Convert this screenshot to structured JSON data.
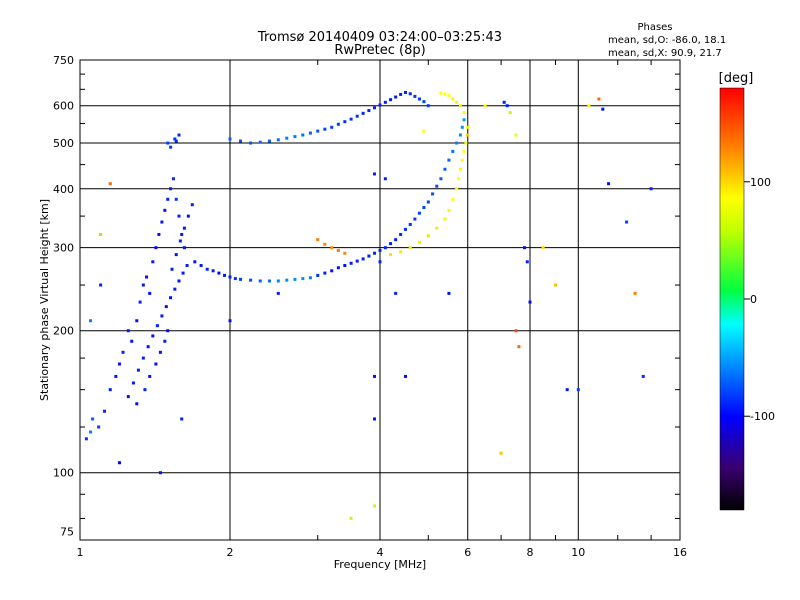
{
  "chart_data": {
    "type": "scatter",
    "title": "Tromsø 20140409 03:24:00–03:25:43",
    "subtitle": "RwPretec (8p)",
    "stats": {
      "heading": "Phases",
      "line1": "mean, sd,O: -86.0, 18.1",
      "line2": "mean, sd,X:  90.9, 21.7"
    },
    "xlabel": "Frequency [MHz]",
    "ylabel": "Stationary phase Virtual Height [km]",
    "x_scale": "log",
    "y_scale": "log",
    "xlim": [
      1,
      16
    ],
    "ylim": [
      72,
      750
    ],
    "x_ticks": [
      1,
      2,
      4,
      6,
      8,
      10,
      16
    ],
    "y_ticks": [
      75,
      100,
      200,
      300,
      400,
      500,
      600,
      750
    ],
    "grid": true,
    "colorbar": {
      "label": "[deg]",
      "range": [
        -180,
        180
      ],
      "ticks": [
        100,
        0,
        -100
      ]
    },
    "series": [
      {
        "points": [
          [
            1.03,
            118,
            -85
          ],
          [
            1.05,
            122,
            -60
          ],
          [
            1.06,
            130,
            -70
          ],
          [
            1.09,
            125,
            -80
          ],
          [
            1.12,
            135,
            -88
          ],
          [
            1.15,
            150,
            -90
          ],
          [
            1.18,
            160,
            -92
          ],
          [
            1.2,
            170,
            -95
          ],
          [
            1.22,
            180,
            -90
          ],
          [
            1.25,
            200,
            -92
          ],
          [
            1.27,
            190,
            -95
          ],
          [
            1.3,
            210,
            -95
          ],
          [
            1.32,
            230,
            -90
          ],
          [
            1.34,
            250,
            -92
          ],
          [
            1.36,
            260,
            -95
          ],
          [
            1.38,
            240,
            -95
          ],
          [
            1.4,
            280,
            -92
          ],
          [
            1.42,
            300,
            -95
          ],
          [
            1.44,
            320,
            -94
          ],
          [
            1.46,
            340,
            -92
          ],
          [
            1.48,
            360,
            -95
          ],
          [
            1.5,
            380,
            -90
          ],
          [
            1.52,
            400,
            -90
          ],
          [
            1.54,
            420,
            -88
          ],
          [
            1.56,
            380,
            -85
          ],
          [
            1.58,
            350,
            -90
          ],
          [
            1.6,
            320,
            -92
          ],
          [
            1.62,
            300,
            -95
          ],
          [
            1.25,
            145,
            -95
          ],
          [
            1.28,
            155,
            -92
          ],
          [
            1.31,
            165,
            -90
          ],
          [
            1.34,
            175,
            -92
          ],
          [
            1.37,
            185,
            -95
          ],
          [
            1.4,
            195,
            -95
          ],
          [
            1.43,
            205,
            -90
          ],
          [
            1.46,
            215,
            -92
          ],
          [
            1.49,
            225,
            -95
          ],
          [
            1.52,
            235,
            -95
          ],
          [
            1.55,
            245,
            -92
          ],
          [
            1.58,
            255,
            -95
          ],
          [
            1.61,
            265,
            -92
          ],
          [
            1.64,
            275,
            -90
          ],
          [
            1.3,
            140,
            -95
          ],
          [
            1.35,
            150,
            -90
          ],
          [
            1.38,
            160,
            -92
          ],
          [
            1.42,
            170,
            -95
          ],
          [
            1.45,
            180,
            -95
          ],
          [
            1.48,
            190,
            -92
          ],
          [
            1.5,
            200,
            -95
          ],
          [
            1.53,
            270,
            -92
          ],
          [
            1.56,
            290,
            -95
          ],
          [
            1.59,
            310,
            -90
          ],
          [
            1.62,
            330,
            -92
          ],
          [
            1.65,
            350,
            -95
          ],
          [
            1.68,
            370,
            -90
          ],
          [
            1.5,
            500,
            -80
          ],
          [
            1.55,
            510,
            -85
          ],
          [
            1.58,
            520,
            -88
          ],
          [
            1.52,
            490,
            -82
          ],
          [
            1.56,
            505,
            -85
          ],
          [
            1.7,
            280,
            -95
          ],
          [
            1.75,
            275,
            -92
          ],
          [
            1.8,
            270,
            -90
          ],
          [
            1.85,
            268,
            -92
          ],
          [
            1.9,
            265,
            -95
          ],
          [
            1.95,
            262,
            -92
          ],
          [
            2.0,
            260,
            -90
          ],
          [
            2.05,
            258,
            -85
          ],
          [
            2.1,
            257,
            -80
          ],
          [
            2.2,
            256,
            -75
          ],
          [
            2.3,
            255,
            -70
          ],
          [
            2.4,
            255,
            -65
          ],
          [
            2.5,
            255,
            -60
          ],
          [
            2.6,
            256,
            -55
          ],
          [
            2.7,
            257,
            -55
          ],
          [
            2.8,
            258,
            -55
          ],
          [
            2.9,
            259,
            -60
          ],
          [
            3.0,
            262,
            -85
          ],
          [
            3.1,
            265,
            -90
          ],
          [
            3.2,
            268,
            -95
          ],
          [
            3.3,
            272,
            -95
          ],
          [
            3.4,
            275,
            -95
          ],
          [
            3.5,
            278,
            -92
          ],
          [
            3.6,
            281,
            -92
          ],
          [
            3.7,
            284,
            -90
          ],
          [
            3.8,
            288,
            -92
          ],
          [
            3.9,
            292,
            -90
          ],
          [
            4.0,
            296,
            -88
          ],
          [
            4.1,
            300,
            -90
          ],
          [
            4.2,
            306,
            -92
          ],
          [
            4.3,
            312,
            -90
          ],
          [
            4.4,
            320,
            -88
          ],
          [
            4.5,
            328,
            -85
          ],
          [
            4.6,
            336,
            -85
          ],
          [
            4.7,
            345,
            -82
          ],
          [
            4.8,
            355,
            -80
          ],
          [
            4.9,
            365,
            -80
          ],
          [
            5.0,
            375,
            -78
          ],
          [
            5.1,
            390,
            -75
          ],
          [
            5.2,
            405,
            -75
          ],
          [
            5.3,
            420,
            -72
          ],
          [
            5.4,
            440,
            -70
          ],
          [
            5.5,
            460,
            -68
          ],
          [
            5.6,
            480,
            -65
          ],
          [
            5.7,
            500,
            -60
          ],
          [
            5.8,
            520,
            -55
          ],
          [
            5.85,
            540,
            -55
          ],
          [
            5.9,
            560,
            -50
          ],
          [
            2.0,
            510,
            -70
          ],
          [
            2.1,
            505,
            -72
          ],
          [
            2.2,
            500,
            -75
          ],
          [
            2.3,
            502,
            -70
          ],
          [
            2.4,
            505,
            -68
          ],
          [
            2.5,
            508,
            -65
          ],
          [
            2.6,
            512,
            -60
          ],
          [
            2.7,
            516,
            -62
          ],
          [
            2.8,
            520,
            -65
          ],
          [
            2.9,
            525,
            -70
          ],
          [
            3.0,
            530,
            -75
          ],
          [
            3.1,
            535,
            -78
          ],
          [
            3.2,
            540,
            -80
          ],
          [
            3.3,
            548,
            -82
          ],
          [
            3.4,
            555,
            -85
          ],
          [
            3.5,
            562,
            -85
          ],
          [
            3.6,
            570,
            -85
          ],
          [
            3.7,
            578,
            -88
          ],
          [
            3.8,
            586,
            -88
          ],
          [
            3.9,
            594,
            -90
          ],
          [
            4.0,
            602,
            -90
          ],
          [
            4.1,
            610,
            -92
          ],
          [
            4.2,
            618,
            -92
          ],
          [
            4.3,
            626,
            -92
          ],
          [
            4.4,
            634,
            -90
          ],
          [
            4.5,
            640,
            -88
          ],
          [
            4.6,
            636,
            -85
          ],
          [
            4.7,
            628,
            -85
          ],
          [
            4.8,
            620,
            -82
          ],
          [
            4.9,
            612,
            -80
          ],
          [
            5.0,
            600,
            -80
          ],
          [
            3.0,
            312,
            130
          ],
          [
            3.1,
            305,
            128
          ],
          [
            3.2,
            300,
            125
          ],
          [
            3.3,
            296,
            130
          ],
          [
            3.4,
            292,
            128
          ],
          [
            4.2,
            290,
            100
          ],
          [
            4.4,
            294,
            98
          ],
          [
            4.6,
            300,
            95
          ],
          [
            4.8,
            308,
            98
          ],
          [
            5.0,
            318,
            100
          ],
          [
            5.2,
            330,
            98
          ],
          [
            5.4,
            345,
            95
          ],
          [
            5.5,
            360,
            92
          ],
          [
            5.6,
            380,
            90
          ],
          [
            5.7,
            400,
            88
          ],
          [
            5.75,
            420,
            90
          ],
          [
            5.8,
            440,
            92
          ],
          [
            5.85,
            460,
            90
          ],
          [
            5.9,
            480,
            88
          ],
          [
            5.95,
            500,
            85
          ],
          [
            6.0,
            520,
            80
          ],
          [
            6.0,
            540,
            75
          ],
          [
            5.9,
            580,
            90
          ],
          [
            5.8,
            600,
            95
          ],
          [
            5.7,
            610,
            95
          ],
          [
            5.6,
            620,
            92
          ],
          [
            5.5,
            630,
            90
          ],
          [
            5.4,
            635,
            88
          ],
          [
            5.3,
            638,
            90
          ],
          [
            7.2,
            600,
            -90
          ],
          [
            7.3,
            580,
            60
          ],
          [
            7.5,
            520,
            80
          ],
          [
            7.8,
            300,
            -95
          ],
          [
            7.9,
            280,
            -90
          ],
          [
            7.5,
            200,
            150
          ],
          [
            7.6,
            185,
            140
          ],
          [
            8.0,
            230,
            -95
          ],
          [
            9.5,
            150,
            -92
          ],
          [
            10.5,
            600,
            90
          ],
          [
            11.0,
            620,
            140
          ],
          [
            11.2,
            590,
            -95
          ],
          [
            11.5,
            410,
            -95
          ],
          [
            12.5,
            340,
            -80
          ],
          [
            13.0,
            240,
            130
          ],
          [
            13.5,
            160,
            -85
          ],
          [
            14.0,
            400,
            -90
          ],
          [
            8.5,
            300,
            100
          ],
          [
            9.0,
            250,
            110
          ],
          [
            10.0,
            150,
            -80
          ],
          [
            1.15,
            410,
            140
          ],
          [
            1.1,
            320,
            110
          ],
          [
            1.05,
            210,
            -60
          ],
          [
            1.1,
            250,
            -90
          ],
          [
            1.2,
            105,
            -100
          ],
          [
            1.45,
            100,
            -95
          ],
          [
            1.6,
            130,
            -90
          ],
          [
            2.0,
            210,
            -95
          ],
          [
            2.5,
            240,
            -92
          ],
          [
            3.5,
            80,
            60
          ],
          [
            3.9,
            160,
            -95
          ],
          [
            3.9,
            130,
            -95
          ],
          [
            3.9,
            85,
            60
          ],
          [
            3.9,
            430,
            -90
          ],
          [
            4.0,
            280,
            -90
          ],
          [
            4.1,
            420,
            -90
          ],
          [
            4.3,
            240,
            -90
          ],
          [
            4.5,
            160,
            -95
          ],
          [
            4.9,
            530,
            90
          ],
          [
            5.5,
            240,
            -95
          ],
          [
            6.0,
            520,
            110
          ],
          [
            6.5,
            600,
            90
          ],
          [
            7.0,
            110,
            110
          ],
          [
            7.1,
            610,
            -90
          ]
        ]
      }
    ]
  }
}
